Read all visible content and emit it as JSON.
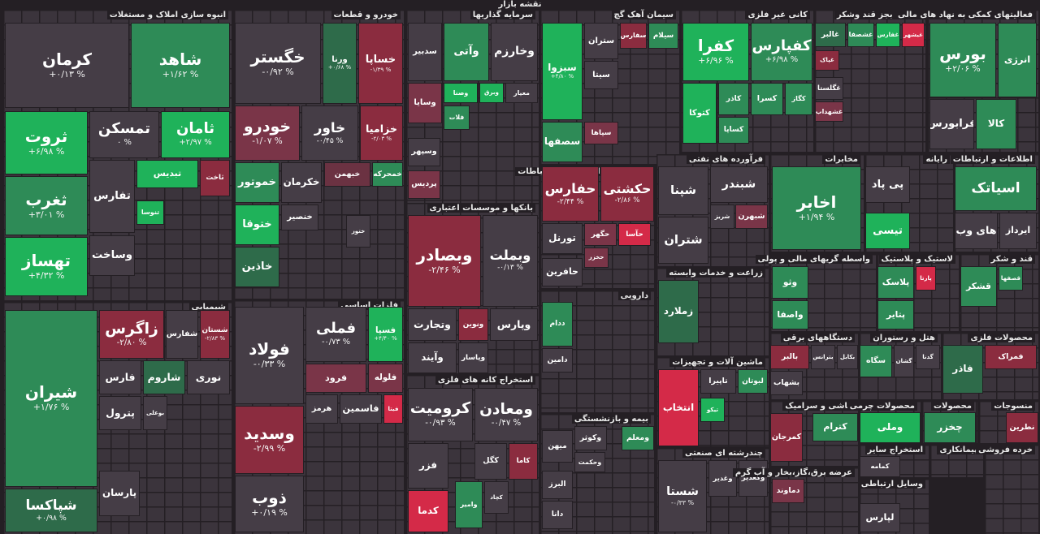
{
  "title": "نقشه بازار",
  "sectors": [
    {
      "name": "انبوه سازی املاک و مستغلات",
      "tiles": [
        {
          "name": "کرمان",
          "change": "+۰/۱۳ %",
          "color": "#453d46"
        },
        {
          "name": "شاهد",
          "change": "+۱/۶۲ %",
          "color": "#2e8b57"
        },
        {
          "name": "ثروت",
          "change": "+۶/۹۸ %",
          "color": "#1fb25a"
        },
        {
          "name": "تمسکن",
          "change": "۰ %",
          "color": "#453d46"
        },
        {
          "name": "ثامان",
          "change": "+۲/۹۷ %",
          "color": "#1fb25a"
        },
        {
          "name": "ثغرب",
          "change": "+۳/۰۱ %",
          "color": "#2e8b57"
        },
        {
          "name": "تهساز",
          "change": "+۴/۳۲ %",
          "color": "#1fb25a"
        },
        {
          "name": "تفارس",
          "color": "#453d46"
        },
        {
          "name": "تبدیس",
          "color": "#1fb25a"
        },
        {
          "name": "ثاخت",
          "color": "#8b2c3f"
        },
        {
          "name": "تنوسا",
          "color": "#1fb25a"
        },
        {
          "name": "وساخت",
          "color": "#453d46"
        }
      ]
    },
    {
      "name": "شیمیایی",
      "tiles": [
        {
          "name": "شیران",
          "change": "+۱/۷۶ %",
          "color": "#2e8b57"
        },
        {
          "name": "زاگرس",
          "change": "-۲/۸۰ %",
          "color": "#8b2c3f"
        },
        {
          "name": "شفارس",
          "color": "#453d46"
        },
        {
          "name": "شستان",
          "change": "-۲/۸۳ %",
          "color": "#8b2c3f"
        },
        {
          "name": "فارس",
          "color": "#453d46"
        },
        {
          "name": "شاروم",
          "color": "#2e6b4a"
        },
        {
          "name": "نوری",
          "color": "#453d46"
        },
        {
          "name": "پترول",
          "color": "#453d46"
        },
        {
          "name": "بوعلی",
          "color": "#453d46"
        },
        {
          "name": "پارسان",
          "color": "#453d46"
        },
        {
          "name": "شپاکسا",
          "change": "+۰/۹۸ %",
          "color": "#2e6b4a"
        }
      ]
    },
    {
      "name": "خودرو و قطعات",
      "tiles": [
        {
          "name": "خگستر",
          "change": "-۰/۹۲ %",
          "color": "#453d46"
        },
        {
          "name": "ورنا",
          "change": "+۰/۶۸ %",
          "color": "#2e6b4a"
        },
        {
          "name": "خساپا",
          "change": "-۱/۳۹ %",
          "color": "#8b2c3f"
        },
        {
          "name": "خودرو",
          "change": "-۱/۰۷ %",
          "color": "#7a3548"
        },
        {
          "name": "خاور",
          "change": "-۰/۴۵ %",
          "color": "#453d46"
        },
        {
          "name": "خزامیا",
          "change": "-۲/۰۳ %",
          "color": "#8b2c3f"
        },
        {
          "name": "خموتور",
          "color": "#2e8b57"
        },
        {
          "name": "خکرمان",
          "color": "#453d46"
        },
        {
          "name": "خبهمن",
          "color": "#6b3242"
        },
        {
          "name": "خمحرکه",
          "color": "#2e8b57"
        },
        {
          "name": "ختوقا",
          "color": "#1fb25a"
        },
        {
          "name": "خاذین",
          "color": "#2e6b4a"
        },
        {
          "name": "خنصیر",
          "color": "#453d46"
        },
        {
          "name": "ختور",
          "color": "#453d46"
        }
      ]
    },
    {
      "name": "فلزات اساسی",
      "tiles": [
        {
          "name": "فولاد",
          "change": "-۰/۳۳ %",
          "color": "#453d46"
        },
        {
          "name": "فملی",
          "change": "-۰/۷۳ %",
          "color": "#453d46"
        },
        {
          "name": "فسپا",
          "change": "+۴/۴۰ %",
          "color": "#1fb25a"
        },
        {
          "name": "فرود",
          "color": "#7a3548"
        },
        {
          "name": "فلوله",
          "color": "#7a3548"
        },
        {
          "name": "هرمز",
          "color": "#453d46"
        },
        {
          "name": "فاسمین",
          "color": "#453d46"
        },
        {
          "name": "فیتا",
          "color": "#d42a48"
        },
        {
          "name": "وسدید",
          "change": "-۲/۹۹ %",
          "color": "#8b2c3f"
        },
        {
          "name": "ذوب",
          "change": "+۰/۱۹ %",
          "color": "#453d46"
        }
      ]
    },
    {
      "name": "سرمایه گذاریها",
      "tiles": [
        {
          "name": "سدبیر",
          "color": "#453d46"
        },
        {
          "name": "وآتی",
          "color": "#2e8b57"
        },
        {
          "name": "وخارزم",
          "color": "#453d46"
        },
        {
          "name": "وسایا",
          "color": "#7a3548"
        },
        {
          "name": "وصنا",
          "color": "#1fb25a"
        },
        {
          "name": "وبرق",
          "color": "#1fb25a"
        },
        {
          "name": "معیار",
          "color": "#453d46"
        },
        {
          "name": "فلات",
          "color": "#2e8b57"
        },
        {
          "name": "وسپهر",
          "color": "#453d46"
        },
        {
          "name": "پردیس",
          "color": "#7a3548"
        }
      ]
    },
    {
      "name": "بانکها و موسسات اعتباری",
      "tiles": [
        {
          "name": "وبصادر",
          "change": "-۲/۴۶ %",
          "color": "#8b2c3f"
        },
        {
          "name": "وبملت",
          "change": "-۰/۱۳ %",
          "color": "#453d46"
        },
        {
          "name": "وتجارت",
          "color": "#453d46"
        },
        {
          "name": "ونوین",
          "color": "#8b2c3f"
        },
        {
          "name": "وپارس",
          "color": "#453d46"
        },
        {
          "name": "وآیند",
          "color": "#453d46"
        },
        {
          "name": "وپاسار",
          "color": "#453d46"
        }
      ]
    },
    {
      "name": "استخراج کانه های فلزی",
      "tiles": [
        {
          "name": "کرومیت",
          "change": "-۰/۹۳ %",
          "color": "#453d46"
        },
        {
          "name": "ومعادن",
          "change": "-۰/۴۷ %",
          "color": "#453d46"
        },
        {
          "name": "فزر",
          "color": "#453d46"
        },
        {
          "name": "کگل",
          "color": "#453d46"
        },
        {
          "name": "کاما",
          "color": "#8b2c3f"
        },
        {
          "name": "وامیر",
          "color": "#2e8b57"
        },
        {
          "name": "کچاد",
          "color": "#453d46"
        },
        {
          "name": "کدما",
          "color": "#d42a48"
        }
      ]
    },
    {
      "name": "سیمان آهک گچ",
      "tiles": [
        {
          "name": "سبزوا",
          "change": "+۴/۸۰ %",
          "color": "#1fb25a"
        },
        {
          "name": "ستران",
          "color": "#453d46"
        },
        {
          "name": "سفارس",
          "color": "#8b2c3f"
        },
        {
          "name": "سیلام",
          "color": "#2e8b57"
        },
        {
          "name": "سیتا",
          "color": "#453d46"
        },
        {
          "name": "سصفها",
          "color": "#2e8b57"
        },
        {
          "name": "سپاها",
          "color": "#7a3548"
        }
      ]
    },
    {
      "name": "حمل و نقل انبارداری و ارتباطات",
      "tiles": [
        {
          "name": "حفارس",
          "change": "-۲/۴۴ %",
          "color": "#8b2c3f"
        },
        {
          "name": "حکشتی",
          "change": "-۲/۸۶ %",
          "color": "#8b2c3f"
        },
        {
          "name": "تورنل",
          "color": "#453d46"
        },
        {
          "name": "حگهر",
          "color": "#7a3548"
        },
        {
          "name": "حآسا",
          "color": "#d42a48"
        },
        {
          "name": "حخزر",
          "color": "#7a3548"
        },
        {
          "name": "حافرین",
          "color": "#453d46"
        }
      ]
    },
    {
      "name": "دارویی",
      "tiles": [
        {
          "name": "ددام",
          "color": "#2e8b57"
        },
        {
          "name": "دامین",
          "color": "#453d46"
        }
      ]
    },
    {
      "name": "بیمه و بازنشستگی",
      "tiles": [
        {
          "name": "میهن",
          "color": "#453d46"
        },
        {
          "name": "وکوثر",
          "color": "#453d46"
        },
        {
          "name": "ومعلم",
          "color": "#2e8b57"
        },
        {
          "name": "وحکمت",
          "color": "#453d46"
        },
        {
          "name": "البرز",
          "color": "#453d46"
        },
        {
          "name": "دانا",
          "color": "#453d46"
        }
      ]
    },
    {
      "name": "کانی غیر فلزی",
      "tiles": [
        {
          "name": "کفرا",
          "change": "+۶/۹۶ %",
          "color": "#1fb25a"
        },
        {
          "name": "کفپارس",
          "change": "+۶/۹۸ %",
          "color": "#2e8b57"
        },
        {
          "name": "کتوکا",
          "color": "#1fb25a"
        },
        {
          "name": "کاذر",
          "color": "#2e8b57"
        },
        {
          "name": "کسرا",
          "color": "#2e8b57"
        },
        {
          "name": "کگاز",
          "color": "#2e8b57"
        },
        {
          "name": "کساپا",
          "color": "#2e8b57"
        }
      ]
    },
    {
      "name": "غذایی بجز قند وشکر",
      "tiles": [
        {
          "name": "غالبر",
          "color": "#2e6b4a"
        },
        {
          "name": "غشصفا",
          "color": "#2e8b57"
        },
        {
          "name": "غفارس",
          "color": "#1fb25a"
        },
        {
          "name": "غیشهر",
          "color": "#d42a48"
        },
        {
          "name": "غپاک",
          "color": "#8b2c3f"
        },
        {
          "name": "غگلستا",
          "color": "#453d46"
        },
        {
          "name": "غشهداب",
          "color": "#7a3548"
        }
      ]
    },
    {
      "name": "فعالیتهای کمکی به نهاد های مالی",
      "tiles": [
        {
          "name": "بورس",
          "change": "+۲/۰۶ %",
          "color": "#2e8b57"
        },
        {
          "name": "انرژی",
          "color": "#2e8b57"
        },
        {
          "name": "فرابورس",
          "color": "#453d46"
        },
        {
          "name": "کالا",
          "color": "#2e8b57"
        }
      ]
    },
    {
      "name": "فرآورده های نفتی",
      "tiles": [
        {
          "name": "شپنا",
          "color": "#453d46"
        },
        {
          "name": "شتران",
          "color": "#453d46"
        },
        {
          "name": "شبندر",
          "color": "#453d46"
        },
        {
          "name": "شریز",
          "color": "#453d46"
        },
        {
          "name": "شبهرن",
          "color": "#7a3548"
        }
      ]
    },
    {
      "name": "زراعت و خدمات وابسته",
      "tiles": [
        {
          "name": "زملارد",
          "color": "#2e6b4a"
        }
      ]
    },
    {
      "name": "ماشین آلات و تجهیزات",
      "tiles": [
        {
          "name": "انتخاب",
          "color": "#d42a48"
        },
        {
          "name": "تاپیرا",
          "color": "#453d46"
        },
        {
          "name": "لبوتان",
          "color": "#2e8b57"
        },
        {
          "name": "تیکو",
          "color": "#1fb25a"
        }
      ]
    },
    {
      "name": "چندرشته ای صنعتی",
      "tiles": [
        {
          "name": "شستا",
          "change": "-۰/۳۳ %",
          "color": "#453d46"
        },
        {
          "name": "وغدیر",
          "color": "#453d46"
        },
        {
          "name": "وکغدیر",
          "color": "#453d46"
        }
      ]
    },
    {
      "name": "مخابرات",
      "tiles": [
        {
          "name": "اخابر",
          "change": "+۱/۹۴ %",
          "color": "#2e8b57"
        }
      ]
    },
    {
      "name": "رایانه",
      "tiles": [
        {
          "name": "پی پاد",
          "color": "#453d46"
        },
        {
          "name": "تیسی",
          "color": "#1fb25a"
        }
      ]
    },
    {
      "name": "اطلاعات و ارتباطات",
      "tiles": [
        {
          "name": "اسیاتک",
          "color": "#2e8b57"
        },
        {
          "name": "های وب",
          "color": "#453d46"
        },
        {
          "name": "ایرداز",
          "color": "#453d46"
        }
      ]
    },
    {
      "name": "واسطه گریهای مالی و پولی",
      "tiles": [
        {
          "name": "وثو",
          "color": "#2e8b57"
        },
        {
          "name": "واصفا",
          "color": "#2e8b57"
        }
      ]
    },
    {
      "name": "لاستیک و پلاستیک",
      "tiles": [
        {
          "name": "پلاسک",
          "color": "#2e8b57"
        },
        {
          "name": "پارتا",
          "color": "#d42a48"
        },
        {
          "name": "پتایر",
          "color": "#2e8b57"
        }
      ]
    },
    {
      "name": "قند و شکر",
      "tiles": [
        {
          "name": "قشکر",
          "color": "#2e8b57"
        },
        {
          "name": "قصفها",
          "color": "#2e8b57"
        }
      ]
    },
    {
      "name": "دستگاههای برقی",
      "tiles": [
        {
          "name": "بالبر",
          "color": "#8b2c3f"
        },
        {
          "name": "بترانس",
          "color": "#453d46"
        },
        {
          "name": "بکابل",
          "color": "#453d46"
        },
        {
          "name": "بشهاب",
          "color": "#453d46"
        }
      ]
    },
    {
      "name": "هتل و رستوران",
      "tiles": [
        {
          "name": "سگاه",
          "color": "#2e8b57"
        },
        {
          "name": "گشان",
          "color": "#453d46"
        },
        {
          "name": "گدنا",
          "color": "#453d46"
        }
      ]
    },
    {
      "name": "محصولات فلزی",
      "tiles": [
        {
          "name": "فاذر",
          "color": "#2e6b4a"
        },
        {
          "name": "فمراک",
          "color": "#8b2c3f"
        }
      ]
    },
    {
      "name": "کاشی و سرامیک",
      "tiles": [
        {
          "name": "کمرجان",
          "color": "#8b2c3f"
        },
        {
          "name": "کترام",
          "color": "#2e8b57"
        }
      ]
    },
    {
      "name": "عرضه برق،گاز،بخار و آب گرم",
      "tiles": [
        {
          "name": "دماوند",
          "color": "#7a3548"
        }
      ]
    },
    {
      "name": "محصولات چرمی",
      "tiles": [
        {
          "name": "وملی",
          "color": "#1fb25a"
        }
      ]
    },
    {
      "name": "محصولات",
      "tiles": [
        {
          "name": "چخزر",
          "color": "#2e8b57"
        }
      ]
    },
    {
      "name": "منسوجات",
      "tiles": [
        {
          "name": "نطرین",
          "color": "#8b2c3f"
        }
      ]
    },
    {
      "name": "استخراج سایر",
      "tiles": [
        {
          "name": "کمامه",
          "color": "#453d46"
        }
      ]
    },
    {
      "name": "پیمانکاری",
      "tiles": []
    },
    {
      "name": "وسایل ارتباطی",
      "tiles": [
        {
          "name": "لپارس",
          "color": "#453d46"
        }
      ]
    },
    {
      "name": "خرده فروشی",
      "tiles": []
    }
  ]
}
